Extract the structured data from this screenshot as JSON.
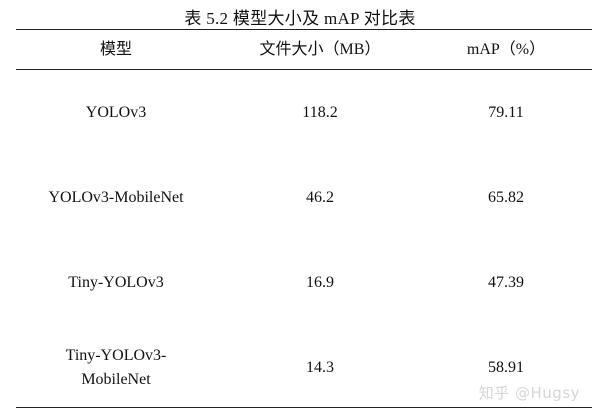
{
  "table": {
    "caption": "表 5.2  模型大小及 mAP 对比表",
    "headers": [
      "模型",
      "文件大小（MB）",
      "mAP（%）"
    ],
    "rows": [
      {
        "model": "YOLOv3",
        "size": "118.2",
        "map": "79.11"
      },
      {
        "model": "YOLOv3-MobileNet",
        "size": "46.2",
        "map": "65.82"
      },
      {
        "model": "Tiny-YOLOv3",
        "size": "16.9",
        "map": "47.39"
      },
      {
        "model_line1": "Tiny-YOLOv3-",
        "model_line2": "MobileNet",
        "size": "14.3",
        "map": "58.91"
      }
    ]
  },
  "watermark": "知乎 @Hugsy"
}
